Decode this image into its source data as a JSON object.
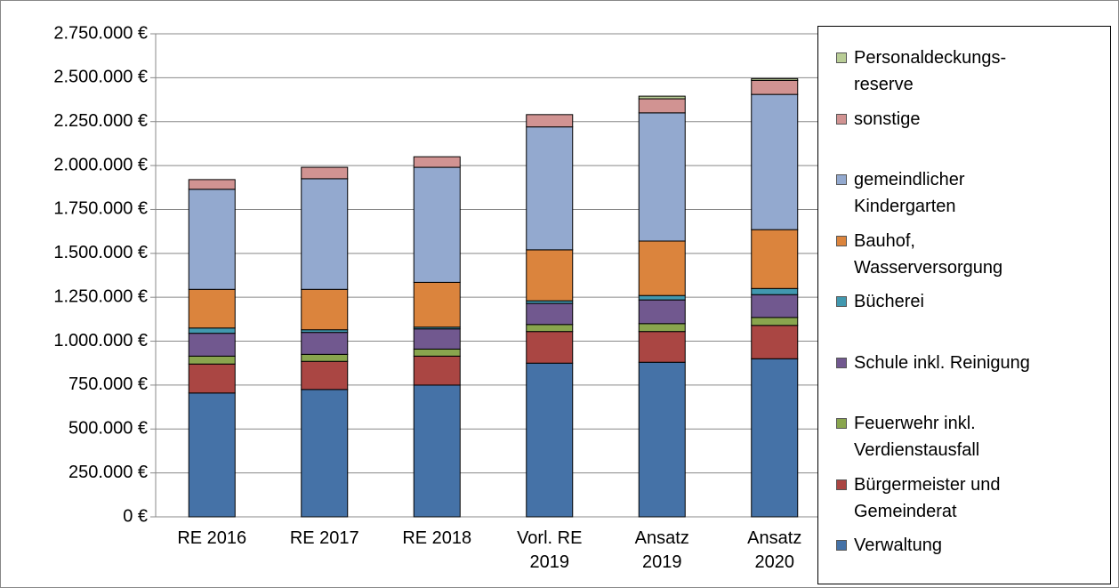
{
  "chart_data": {
    "type": "stacked_bar",
    "categories": [
      "RE 2016",
      "RE 2017",
      "RE 2018",
      "Vorl. RE 2019",
      "Ansatz 2019",
      "Ansatz 2020"
    ],
    "series": [
      {
        "name": "Verwaltung",
        "color": "#4572a7",
        "values": [
          705000,
          725000,
          750000,
          875000,
          880000,
          900000
        ]
      },
      {
        "name": "Bürgermeister und Gemeinderat",
        "color": "#aa4643",
        "values": [
          165000,
          160000,
          165000,
          180000,
          175000,
          190000
        ]
      },
      {
        "name": "Feuerwehr inkl. Verdienstausfall",
        "color": "#89a54e",
        "values": [
          45000,
          40000,
          40000,
          40000,
          45000,
          45000
        ]
      },
      {
        "name": "Schule inkl. Reinigung",
        "color": "#71588f",
        "values": [
          130000,
          125000,
          115000,
          120000,
          135000,
          130000
        ]
      },
      {
        "name": "Bücherei",
        "color": "#4198af",
        "values": [
          30000,
          15000,
          10000,
          15000,
          25000,
          35000
        ]
      },
      {
        "name": "Bauhof, Wasserversorgung",
        "color": "#db843d",
        "values": [
          220000,
          230000,
          255000,
          290000,
          310000,
          335000
        ]
      },
      {
        "name": "gemeindlicher Kindergarten",
        "color": "#93a9cf",
        "values": [
          570000,
          630000,
          655000,
          700000,
          730000,
          770000
        ]
      },
      {
        "name": "sonstige",
        "color": "#d19392",
        "values": [
          55000,
          65000,
          60000,
          70000,
          80000,
          80000
        ]
      },
      {
        "name": "Personaldeckungs-reserve",
        "color": "#b9cd96",
        "values": [
          0,
          0,
          0,
          0,
          15000,
          10000
        ]
      }
    ],
    "ylim": [
      0,
      2750000
    ],
    "yticks": [
      {
        "value": 0,
        "label": "0 €"
      },
      {
        "value": 250000,
        "label": "250.000 €"
      },
      {
        "value": 500000,
        "label": "500.000 €"
      },
      {
        "value": 750000,
        "label": "750.000 €"
      },
      {
        "value": 1000000,
        "label": "1.000.000 €"
      },
      {
        "value": 1250000,
        "label": "1.250.000 €"
      },
      {
        "value": 1500000,
        "label": "1.500.000 €"
      },
      {
        "value": 1750000,
        "label": "1.750.000 €"
      },
      {
        "value": 2000000,
        "label": "2.000.000 €"
      },
      {
        "value": 2250000,
        "label": "2.250.000 €"
      },
      {
        "value": 2500000,
        "label": "2.500.000 €"
      },
      {
        "value": 2750000,
        "label": "2.750.000 €"
      }
    ],
    "grid": true,
    "legend": "right"
  }
}
